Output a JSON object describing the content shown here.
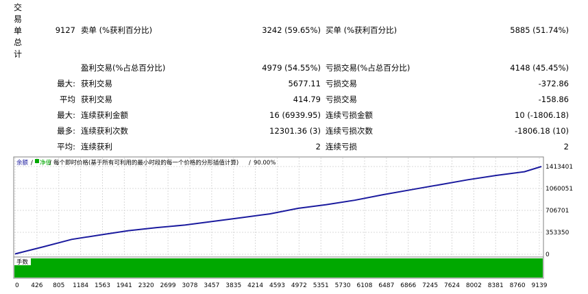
{
  "side_label": [
    "交",
    "易",
    "单",
    "总",
    "计"
  ],
  "summary": {
    "total": "9127",
    "sell_label": "卖单 (%获利百分比)",
    "sell_value": "3242 (59.65%)",
    "buy_label": "买单 (%获利百分比)",
    "buy_value": "5885 (51.74%)"
  },
  "rows": [
    {
      "prefix": "",
      "left_label": "盈利交易(%占总百分比)",
      "left_value": "4979 (54.55%)",
      "right_label": "亏损交易(%占总百分比)",
      "right_value": "4148 (45.45%)"
    },
    {
      "prefix": "最大:",
      "left_label": "获利交易",
      "left_value": "5677.11",
      "right_label": "亏损交易",
      "right_value": "-372.86"
    },
    {
      "prefix": "平均",
      "left_label": "获利交易",
      "left_value": "414.79",
      "right_label": "亏损交易",
      "right_value": "-158.86"
    },
    {
      "prefix": "最大:",
      "left_label": "连续获利金额",
      "left_value": "16 (6939.95)",
      "right_label": "连续亏损金额",
      "right_value": "10 (-1806.18)"
    },
    {
      "prefix": "最多:",
      "left_label": "连续获利次数",
      "left_value": "12301.36 (3)",
      "right_label": "连续亏损次数",
      "right_value": "-1806.18 (10)"
    },
    {
      "prefix": "平均:",
      "left_label": "连续获利",
      "left_value": "2",
      "right_label": "连续亏损",
      "right_value": "2"
    }
  ],
  "chart_legend": {
    "balance": "余额",
    "sep1": "/",
    "equity": "净值",
    "sep2": "/",
    "description": "每个即时价格(基于所有可利用的最小时段的每一个价格的分形插值计算)",
    "sep3": "/",
    "quality": "90.00%"
  },
  "volume_label": "手数",
  "colors": {
    "balance_line": "#1a1a9e",
    "volume_fill": "#00a800",
    "grid": "#d8d8d8",
    "frame": "#808080"
  },
  "chart_data": {
    "type": "line",
    "x": [
      0,
      500,
      1000,
      1500,
      2000,
      2500,
      3000,
      3500,
      4000,
      4500,
      5000,
      5500,
      6000,
      6500,
      7000,
      7500,
      8000,
      8500,
      9000,
      9300
    ],
    "series": [
      {
        "values": [
          5000,
          120000,
          240000,
          310000,
          380000,
          430000,
          470000,
          530000,
          590000,
          650000,
          740000,
          800000,
          870000,
          960000,
          1040000,
          1120000,
          1200000,
          1270000,
          1330000,
          1413401
        ]
      }
    ],
    "y_ticks": [
      "1413401",
      "1060051",
      "706701",
      "353350",
      "0"
    ],
    "x_ticks": [
      "0",
      "426",
      "805",
      "1184",
      "1563",
      "1941",
      "2320",
      "2699",
      "3078",
      "3457",
      "3835",
      "4214",
      "4593",
      "4972",
      "5351",
      "5730",
      "6108",
      "6487",
      "6866",
      "7245",
      "7624",
      "8002",
      "8381",
      "8760",
      "9139"
    ],
    "ylim": [
      0,
      1413401
    ],
    "grid": true
  }
}
